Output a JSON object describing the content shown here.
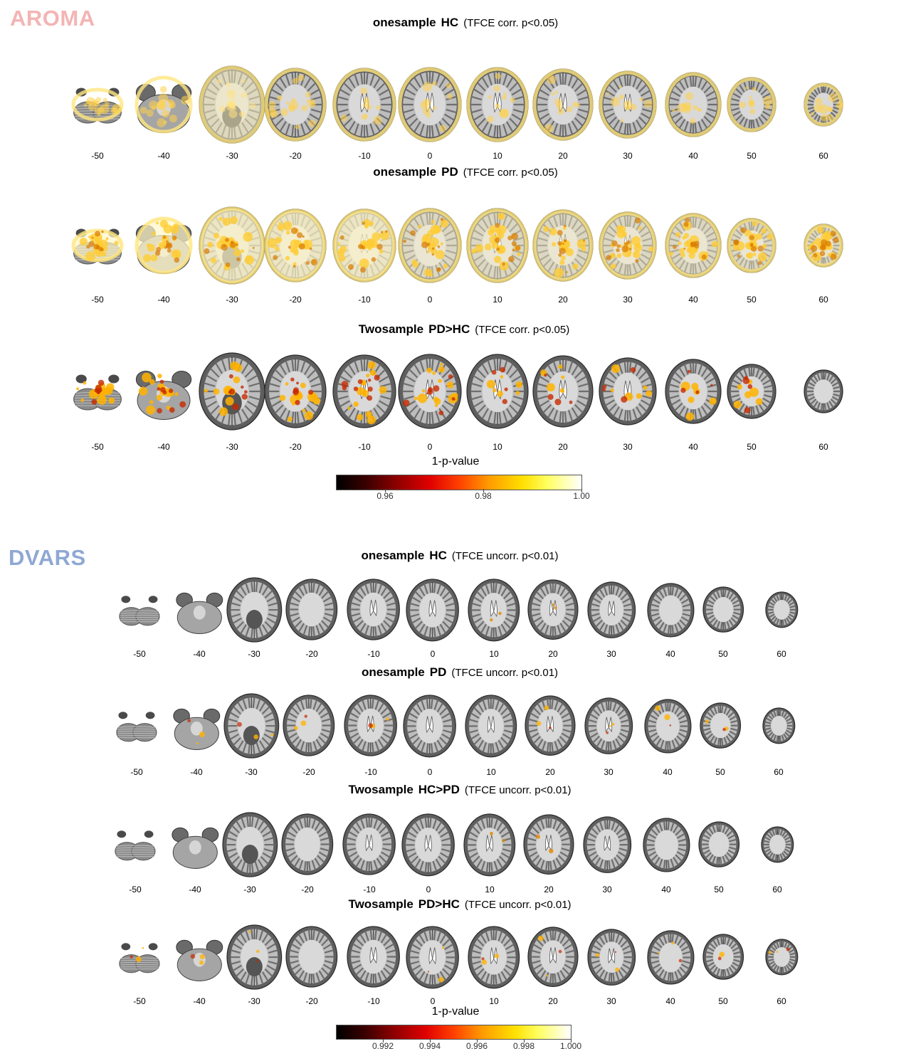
{
  "sections": [
    {
      "label": "AROMA",
      "label_color": "#f4b4b4",
      "rows": [
        {
          "title_bold_1": "onesample",
          "title_bold_2": "HC",
          "note": "(TFCE corr. p<0.05)",
          "overlay": "broad-yellow",
          "coords": [
            "-50",
            "-40",
            "-30",
            "-20",
            "-10",
            "0",
            "10",
            "20",
            "30",
            "40",
            "50",
            "60"
          ]
        },
        {
          "title_bold_1": "onesample",
          "title_bold_2": "PD",
          "note": "(TFCE corr. p<0.05)",
          "overlay": "dense-yellow",
          "coords": [
            "-50",
            "-40",
            "-30",
            "-20",
            "-10",
            "0",
            "10",
            "20",
            "30",
            "40",
            "50",
            "60"
          ]
        },
        {
          "title_bold_1": "Twosample",
          "title_bold_2": "PD>HC",
          "note": "(TFCE corr. p<0.05)",
          "overlay": "spots-orange",
          "coords": [
            "-50",
            "-40",
            "-30",
            "-20",
            "-10",
            "0",
            "10",
            "20",
            "30",
            "40",
            "50",
            "60"
          ]
        }
      ],
      "colorbar": {
        "title": "1-p-value",
        "ticks": [
          "0.96",
          "0.98",
          "1.00"
        ]
      }
    },
    {
      "label": "DVARS",
      "label_color": "#8fa8d4",
      "rows": [
        {
          "title_bold_1": "onesample",
          "title_bold_2": "HC",
          "note": "(TFCE uncorr. p<0.01)",
          "overlay": "minimal",
          "coords": [
            "-50",
            "-40",
            "-30",
            "-20",
            "-10",
            "0",
            "10",
            "20",
            "30",
            "40",
            "50",
            "60"
          ]
        },
        {
          "title_bold_1": "onesample",
          "title_bold_2": "PD",
          "note": "(TFCE uncorr. p<0.01)",
          "overlay": "sparse",
          "coords": [
            "-50",
            "-40",
            "-30",
            "-20",
            "-10",
            "0",
            "10",
            "20",
            "30",
            "40",
            "50",
            "60"
          ]
        },
        {
          "title_bold_1": "Twosample",
          "title_bold_2": "HC>PD",
          "note": "(TFCE uncorr. p<0.01)",
          "overlay": "minimal",
          "coords": [
            "-50",
            "-40",
            "-30",
            "-20",
            "-10",
            "0",
            "10",
            "20",
            "30",
            "40",
            "50",
            "60"
          ]
        },
        {
          "title_bold_1": "Twosample",
          "title_bold_2": "PD>HC",
          "note": "(TFCE uncorr. p<0.01)",
          "overlay": "sparse",
          "coords": [
            "-50",
            "-40",
            "-30",
            "-20",
            "-10",
            "0",
            "10",
            "20",
            "30",
            "40",
            "50",
            "60"
          ]
        }
      ],
      "colorbar": {
        "title": "1-p-value",
        "ticks": [
          "0.992",
          "0.994",
          "0.996",
          "0.998",
          "1.000"
        ]
      }
    }
  ]
}
